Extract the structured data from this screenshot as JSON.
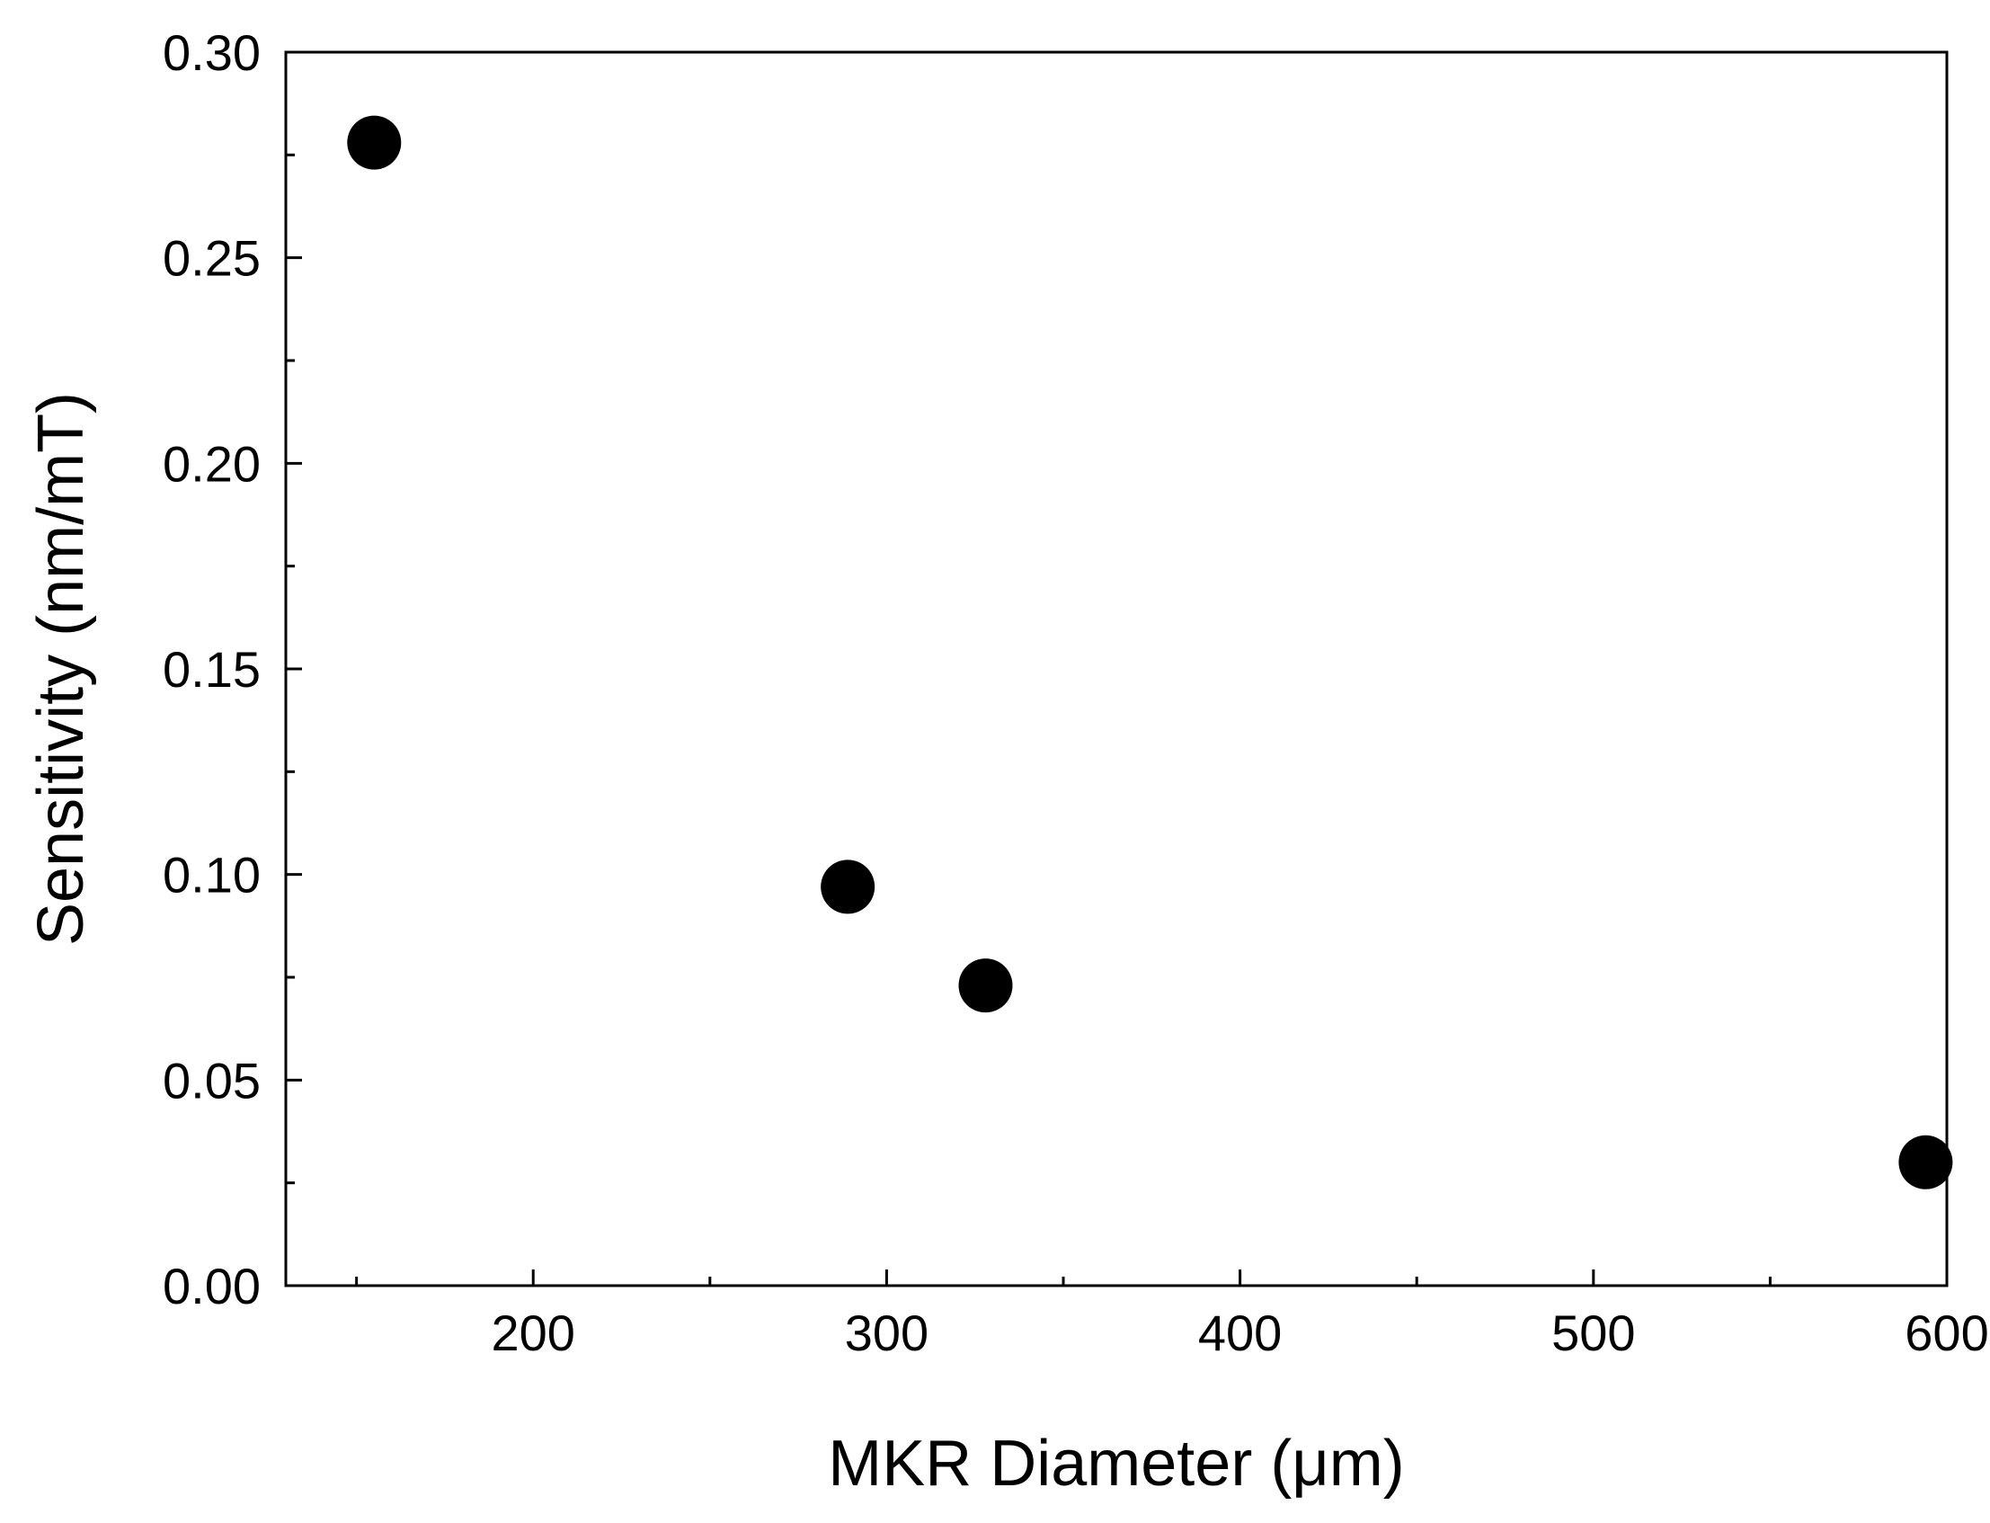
{
  "chart_data": {
    "type": "scatter",
    "title": "",
    "xlabel": "MKR Diameter (μm)",
    "ylabel": "Sensitivity (nm/mT)",
    "xlim": [
      130,
      600
    ],
    "ylim": [
      0.0,
      0.3
    ],
    "x_ticks": [
      200,
      300,
      400,
      500,
      600
    ],
    "x_tick_labels": [
      "200",
      "300",
      "400",
      "500",
      "600"
    ],
    "x_minor_ticks": [
      150,
      250,
      350,
      450,
      550
    ],
    "y_ticks": [
      0.0,
      0.05,
      0.1,
      0.15,
      0.2,
      0.25,
      0.3
    ],
    "y_tick_labels": [
      "0.00",
      "0.05",
      "0.10",
      "0.15",
      "0.20",
      "0.25",
      "0.30"
    ],
    "y_minor_ticks": [
      0.025,
      0.075,
      0.125,
      0.175,
      0.225,
      0.275
    ],
    "grid": false,
    "legend": "none",
    "marker_color": "#000000",
    "series": [
      {
        "points": [
          {
            "x": 155,
            "y": 0.278
          },
          {
            "x": 289,
            "y": 0.097
          },
          {
            "x": 328,
            "y": 0.073
          },
          {
            "x": 594,
            "y": 0.03
          }
        ]
      }
    ]
  }
}
